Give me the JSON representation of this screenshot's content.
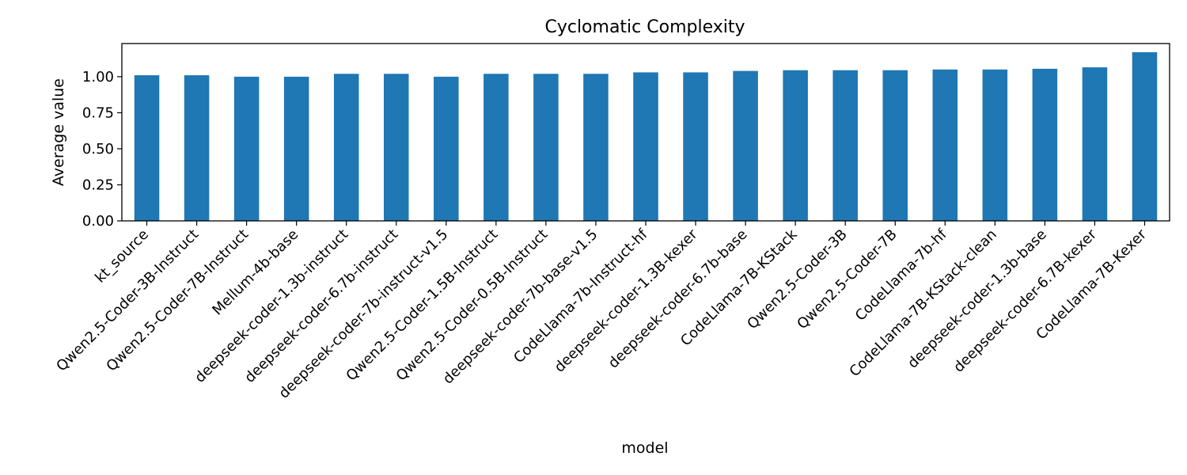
{
  "chart_data": {
    "type": "bar",
    "title": "Cyclomatic Complexity",
    "xlabel": "model",
    "ylabel": "Average value",
    "categories": [
      "kt_source",
      "Qwen2.5-Coder-3B-Instruct",
      "Qwen2.5-Coder-7B-Instruct",
      "Mellum-4b-base",
      "deepseek-coder-1.3b-instruct",
      "deepseek-coder-6.7b-instruct",
      "deepseek-coder-7b-instruct-v1.5",
      "Qwen2.5-Coder-1.5B-Instruct",
      "Qwen2.5-Coder-0.5B-Instruct",
      "deepseek-coder-7b-base-v1.5",
      "CodeLlama-7b-Instruct-hf",
      "deepseek-coder-1.3B-kexer",
      "deepseek-coder-6.7b-base",
      "CodeLlama-7B-KStack",
      "Qwen2.5-Coder-3B",
      "Qwen2.5-Coder-7B",
      "CodeLlama-7b-hf",
      "CodeLlama-7B-KStack-clean",
      "deepseek-coder-1.3b-base",
      "deepseek-coder-6.7B-kexer",
      "CodeLlama-7B-Kexer"
    ],
    "values": [
      1.01,
      1.01,
      1.0,
      1.0,
      1.02,
      1.02,
      1.0,
      1.02,
      1.02,
      1.02,
      1.03,
      1.03,
      1.04,
      1.045,
      1.045,
      1.045,
      1.05,
      1.05,
      1.055,
      1.065,
      1.17
    ],
    "ylim": [
      0,
      1.23
    ],
    "yticks": [
      "0.00",
      "0.25",
      "0.50",
      "0.75",
      "1.00"
    ],
    "ytick_values": [
      0,
      0.25,
      0.5,
      0.75,
      1.0
    ],
    "bar_color": "#1f77b4",
    "grid": false,
    "legend": "none"
  }
}
